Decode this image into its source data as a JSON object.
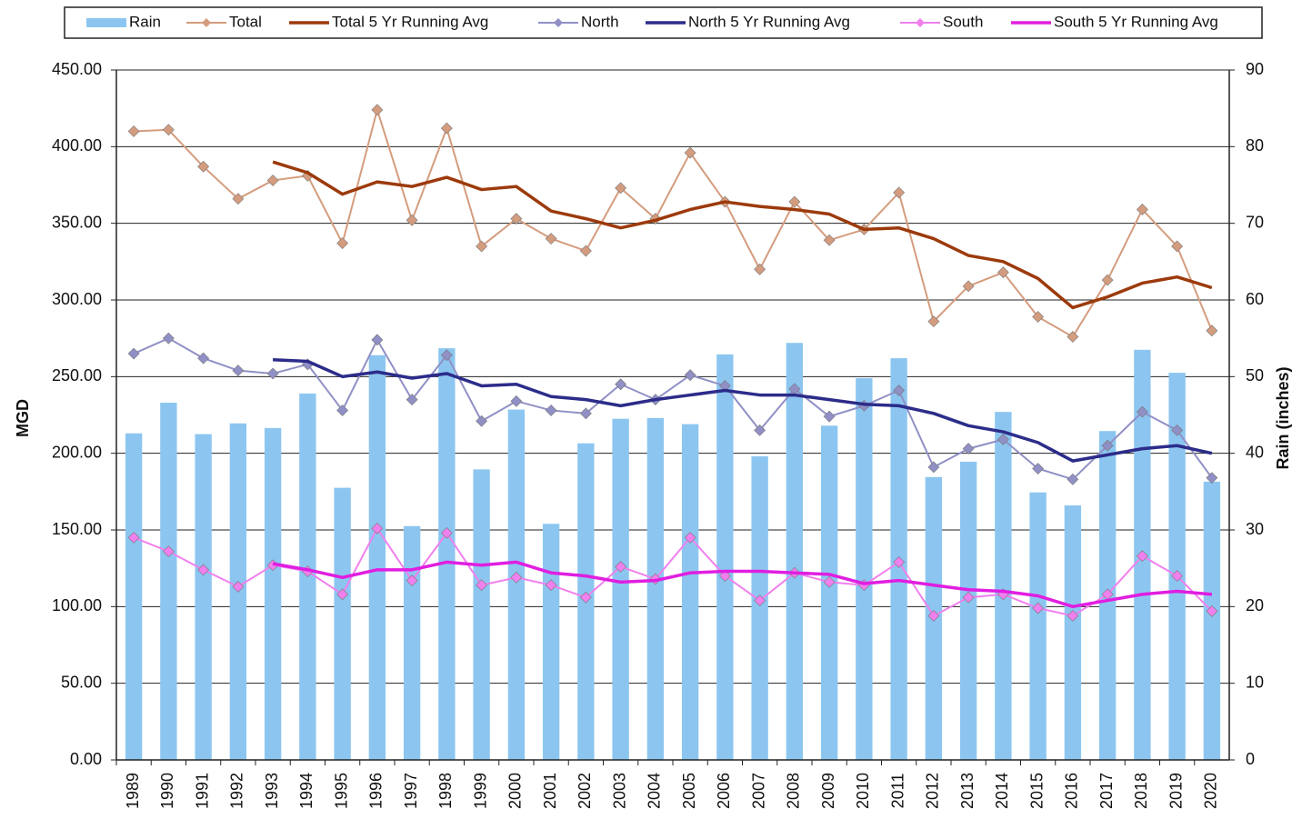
{
  "chart_data": {
    "type": "combo",
    "y_label": "MGD",
    "y2_label": "Rain (inches)",
    "categories": [
      "1989",
      "1990",
      "1991",
      "1992",
      "1993",
      "1994",
      "1995",
      "1996",
      "1997",
      "1998",
      "1999",
      "2000",
      "2001",
      "2002",
      "2003",
      "2004",
      "2005",
      "2006",
      "2007",
      "2008",
      "2009",
      "2010",
      "2011",
      "2012",
      "2013",
      "2014",
      "2015",
      "2016",
      "2017",
      "2018",
      "2019",
      "2020"
    ],
    "ylim": [
      0,
      450
    ],
    "yticks": [
      {
        "value": 0,
        "label": "0.00"
      },
      {
        "value": 50,
        "label": "50.00"
      },
      {
        "value": 100,
        "label": "100.00"
      },
      {
        "value": 150,
        "label": "150.00"
      },
      {
        "value": 200,
        "label": "200.00"
      },
      {
        "value": 250,
        "label": "250.00"
      },
      {
        "value": 300,
        "label": "300.00"
      },
      {
        "value": 350,
        "label": "350.00"
      },
      {
        "value": 400,
        "label": "400.00"
      },
      {
        "value": 450,
        "label": "450.00"
      }
    ],
    "y2lim": [
      0,
      90
    ],
    "y2ticks": [
      0,
      10,
      20,
      30,
      40,
      50,
      60,
      70,
      80,
      90
    ],
    "grid": true,
    "legend": "top",
    "series": [
      {
        "name": "Rain",
        "type": "bar",
        "axis": "y2",
        "color": "#8cc6f0",
        "values": [
          42.6,
          46.6,
          42.5,
          43.9,
          43.3,
          47.8,
          35.5,
          52.8,
          30.5,
          53.7,
          37.9,
          45.7,
          30.8,
          41.3,
          44.5,
          44.6,
          43.8,
          52.9,
          39.6,
          54.4,
          43.6,
          49.8,
          52.4,
          36.9,
          38.9,
          45.4,
          34.9,
          33.2,
          42.9,
          53.5,
          50.5,
          36.3
        ]
      },
      {
        "name": "Total",
        "type": "line",
        "marker": "diamond",
        "color": "#d49c7e",
        "values": [
          410,
          411,
          387,
          366,
          378,
          381,
          337,
          424,
          352,
          412,
          335,
          353,
          340,
          332,
          373,
          353,
          396,
          364,
          320,
          364,
          339,
          346,
          370,
          286,
          309,
          318,
          289,
          276,
          313,
          359,
          335,
          280
        ]
      },
      {
        "name": "Total 5 Yr Running Avg",
        "type": "line",
        "color": "#9c3a0c",
        "values": [
          null,
          null,
          null,
          null,
          390,
          383,
          369,
          377,
          374,
          380,
          372,
          374,
          358,
          353,
          347,
          352,
          359,
          364,
          361,
          359,
          356,
          346,
          347,
          340,
          329,
          325,
          314,
          295,
          302,
          311,
          315,
          308
        ]
      },
      {
        "name": "North",
        "type": "line",
        "marker": "diamond",
        "color": "#9090c6",
        "values": [
          265,
          275,
          262,
          254,
          252,
          258,
          228,
          274,
          235,
          264,
          221,
          234,
          228,
          226,
          245,
          235,
          251,
          244,
          215,
          242,
          224,
          231,
          241,
          191,
          203,
          209,
          190,
          183,
          205,
          227,
          215,
          184
        ]
      },
      {
        "name": "North 5 Yr Running Avg",
        "type": "line",
        "color": "#2c2c8a",
        "values": [
          null,
          null,
          null,
          null,
          261,
          260,
          250,
          253,
          249,
          252,
          244,
          245,
          237,
          235,
          231,
          235,
          238,
          241,
          238,
          238,
          235,
          232,
          231,
          226,
          218,
          214,
          207,
          195,
          199,
          203,
          205,
          200
        ]
      },
      {
        "name": "South",
        "type": "line",
        "marker": "diamond",
        "color": "#f080ee",
        "values": [
          145,
          136,
          124,
          113,
          127,
          123,
          108,
          151,
          117,
          148,
          114,
          119,
          114,
          106,
          126,
          118,
          145,
          120,
          104,
          122,
          116,
          114,
          129,
          94,
          106,
          108,
          99,
          94,
          108,
          133,
          120,
          97
        ]
      },
      {
        "name": "South 5 Yr Running Avg",
        "type": "line",
        "color": "#e01ee0",
        "values": [
          null,
          null,
          null,
          null,
          128,
          124,
          119,
          124,
          124,
          129,
          127,
          129,
          122,
          120,
          116,
          117,
          122,
          123,
          123,
          122,
          121,
          115,
          117,
          114,
          111,
          110,
          107,
          100,
          104,
          108,
          110,
          108
        ]
      }
    ]
  }
}
